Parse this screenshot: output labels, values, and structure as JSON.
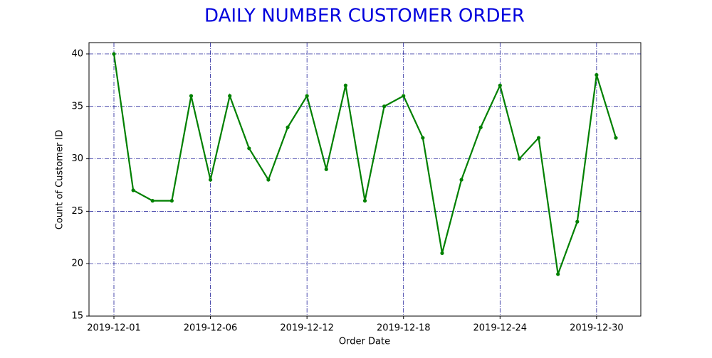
{
  "chart_data": {
    "type": "line",
    "title": "DAILY NUMBER CUSTOMER ORDER",
    "x_label": "Order Date",
    "y_label": "Count of Customer ID",
    "categories": [
      "2019-12-01",
      null,
      null,
      null,
      null,
      "2019-12-06",
      null,
      null,
      null,
      null,
      "2019-12-12",
      null,
      null,
      null,
      null,
      "2019-12-18",
      null,
      null,
      null,
      null,
      "2019-12-24",
      null,
      null,
      null,
      null,
      "2019-12-30",
      null
    ],
    "values": [
      40,
      27,
      26,
      26,
      36,
      28,
      36,
      31,
      28,
      33,
      36,
      29,
      37,
      26,
      35,
      36,
      32,
      21,
      28,
      33,
      37,
      30,
      32,
      19,
      24,
      38,
      32
    ],
    "color": "#008000",
    "title_color": "#0000dd",
    "grid_color": "#00008b",
    "ylim": [
      15,
      41.08
    ],
    "yticks": [
      15,
      20,
      25,
      30,
      35,
      40
    ],
    "grid": true
  }
}
